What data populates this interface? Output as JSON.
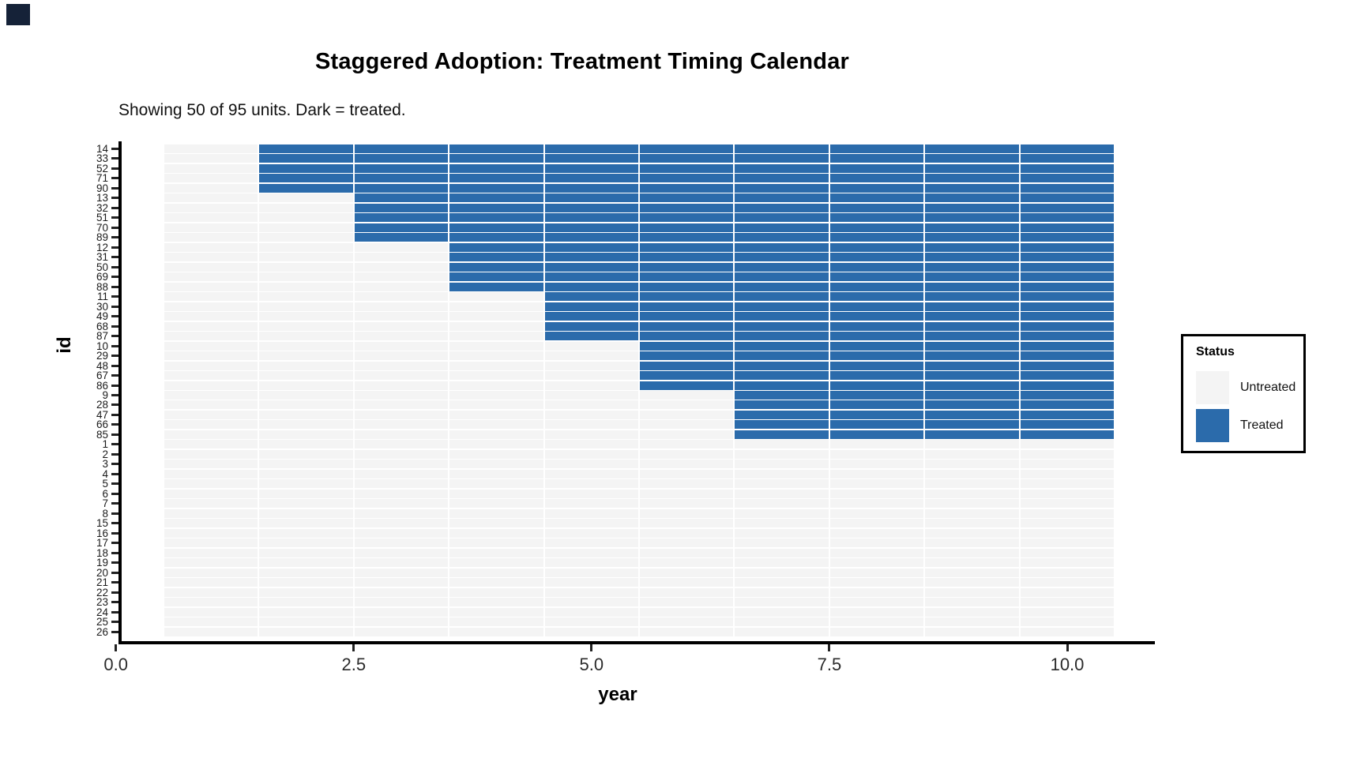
{
  "title": "Staggered Adoption: Treatment Timing Calendar",
  "subtitle": "Showing 50 of 95 units. Dark = treated.",
  "chart_data": {
    "type": "heatmap",
    "title": "Staggered Adoption: Treatment Timing Calendar",
    "subtitle": "Showing 50 of 95 units. Dark = treated.",
    "xlabel": "year",
    "ylabel": "id",
    "x_range": [
      0.5,
      10.5
    ],
    "years": [
      1,
      2,
      3,
      4,
      5,
      6,
      7,
      8,
      9,
      10
    ],
    "x_ticks": [
      {
        "label": "0.0",
        "value": 0
      },
      {
        "label": "2.5",
        "value": 2.5
      },
      {
        "label": "5.0",
        "value": 5
      },
      {
        "label": "7.5",
        "value": 7.5
      },
      {
        "label": "10.0",
        "value": 10
      }
    ],
    "grid": false,
    "legend_position": "right",
    "legend": {
      "title": "Status",
      "items": [
        {
          "label": "Untreated",
          "color": "#f4f4f4"
        },
        {
          "label": "Treated",
          "color": "#2b6bab"
        }
      ]
    },
    "colors": {
      "treated": "#2b6bab",
      "untreated": "#f4f4f4",
      "corner_artifact": "#152238"
    },
    "rows": [
      {
        "id": "14",
        "treat_start": 2
      },
      {
        "id": "33",
        "treat_start": 2
      },
      {
        "id": "52",
        "treat_start": 2
      },
      {
        "id": "71",
        "treat_start": 2
      },
      {
        "id": "90",
        "treat_start": 2
      },
      {
        "id": "13",
        "treat_start": 3
      },
      {
        "id": "32",
        "treat_start": 3
      },
      {
        "id": "51",
        "treat_start": 3
      },
      {
        "id": "70",
        "treat_start": 3
      },
      {
        "id": "89",
        "treat_start": 3
      },
      {
        "id": "12",
        "treat_start": 4
      },
      {
        "id": "31",
        "treat_start": 4
      },
      {
        "id": "50",
        "treat_start": 4
      },
      {
        "id": "69",
        "treat_start": 4
      },
      {
        "id": "88",
        "treat_start": 4
      },
      {
        "id": "11",
        "treat_start": 5
      },
      {
        "id": "30",
        "treat_start": 5
      },
      {
        "id": "49",
        "treat_start": 5
      },
      {
        "id": "68",
        "treat_start": 5
      },
      {
        "id": "87",
        "treat_start": 5
      },
      {
        "id": "10",
        "treat_start": 6
      },
      {
        "id": "29",
        "treat_start": 6
      },
      {
        "id": "48",
        "treat_start": 6
      },
      {
        "id": "67",
        "treat_start": 6
      },
      {
        "id": "86",
        "treat_start": 6
      },
      {
        "id": "9",
        "treat_start": 7
      },
      {
        "id": "28",
        "treat_start": 7
      },
      {
        "id": "47",
        "treat_start": 7
      },
      {
        "id": "66",
        "treat_start": 7
      },
      {
        "id": "85",
        "treat_start": 7
      },
      {
        "id": "1",
        "treat_start": null
      },
      {
        "id": "2",
        "treat_start": null
      },
      {
        "id": "3",
        "treat_start": null
      },
      {
        "id": "4",
        "treat_start": null
      },
      {
        "id": "5",
        "treat_start": null
      },
      {
        "id": "6",
        "treat_start": null
      },
      {
        "id": "7",
        "treat_start": null
      },
      {
        "id": "8",
        "treat_start": null
      },
      {
        "id": "15",
        "treat_start": null
      },
      {
        "id": "16",
        "treat_start": null
      },
      {
        "id": "17",
        "treat_start": null
      },
      {
        "id": "18",
        "treat_start": null
      },
      {
        "id": "19",
        "treat_start": null
      },
      {
        "id": "20",
        "treat_start": null
      },
      {
        "id": "21",
        "treat_start": null
      },
      {
        "id": "22",
        "treat_start": null
      },
      {
        "id": "23",
        "treat_start": null
      },
      {
        "id": "24",
        "treat_start": null
      },
      {
        "id": "25",
        "treat_start": null
      },
      {
        "id": "26",
        "treat_start": null
      }
    ]
  }
}
